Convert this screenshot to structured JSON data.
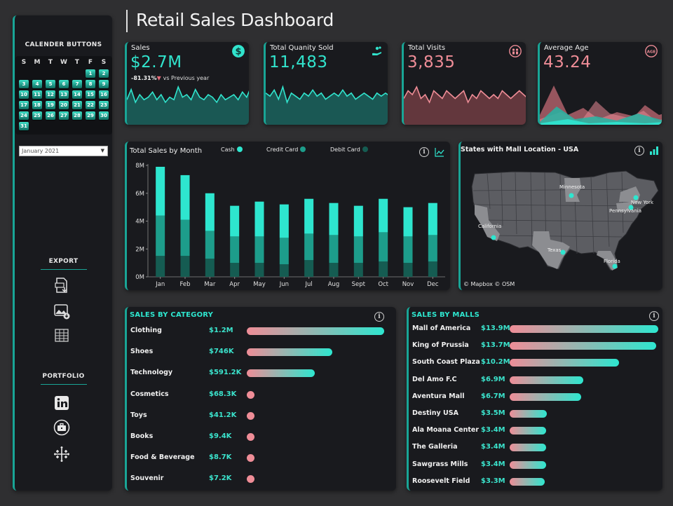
{
  "header": {
    "title": "Retail Sales Dashboard"
  },
  "sidebar": {
    "calendar_title": "CALENDER BUTTONS",
    "weekday_headers": [
      "S",
      "M",
      "T",
      "W",
      "T",
      "F",
      "S"
    ],
    "days": [
      "1",
      "2",
      "3",
      "4",
      "5",
      "6",
      "7",
      "8",
      "9",
      "10",
      "11",
      "12",
      "13",
      "14",
      "15",
      "16",
      "17",
      "18",
      "19",
      "20",
      "21",
      "22",
      "23",
      "24",
      "25",
      "26",
      "27",
      "28",
      "29",
      "30",
      "31"
    ],
    "month_select": "January 2021",
    "export_title": "EXPORT",
    "portfolio_title": "PORTFOLIO",
    "icons": [
      "pdf-export-icon",
      "image-export-icon",
      "table-export-icon",
      "linkedin-icon",
      "briefcase-icon",
      "tableau-icon"
    ]
  },
  "kpis": [
    {
      "label": "Sales",
      "value": "$2.7M",
      "delta": "-81.31%",
      "delta_text": "vs Previous year",
      "icon": "dollar-icon",
      "color": "#31e4cd",
      "fill": "#1b5f5a"
    },
    {
      "label": "Total Quanity Sold",
      "value": "11,483",
      "icon": "hand-coins-icon",
      "color": "#31e4cd",
      "fill": "#1b5f5a"
    },
    {
      "label": "Total Visits",
      "value": "3,835",
      "icon": "people-icon",
      "color": "#ef8d97",
      "fill": "#6b3b40"
    },
    {
      "label": "Average Age",
      "value": "43.24",
      "icon": "age-icon",
      "color": "#ef8d97",
      "fill": "#6b3b40"
    }
  ],
  "chart_data": [
    {
      "type": "bar",
      "stacked": true,
      "title": "Total Sales by Month",
      "categories": [
        "Jan",
        "Feb",
        "Mar",
        "Apr",
        "May",
        "Jun",
        "Jul",
        "Aug",
        "Sept",
        "Oct",
        "Nov",
        "Dec"
      ],
      "series": [
        {
          "name": "Debit Card",
          "color": "#155c52",
          "values": [
            1.5,
            1.5,
            1.3,
            1.0,
            1.0,
            0.9,
            1.2,
            1.0,
            1.0,
            1.1,
            1.0,
            1.1
          ]
        },
        {
          "name": "Credit Card",
          "color": "#1d9d8b",
          "values": [
            2.9,
            2.6,
            2.0,
            1.9,
            1.9,
            1.9,
            1.9,
            2.0,
            1.9,
            2.1,
            1.9,
            1.9
          ]
        },
        {
          "name": "Cash",
          "color": "#2ee6cf",
          "values": [
            3.5,
            3.2,
            2.7,
            2.2,
            2.5,
            2.4,
            2.5,
            2.3,
            2.2,
            2.4,
            2.1,
            2.3
          ]
        }
      ],
      "yticks": [
        "0M",
        "2M",
        "4M",
        "6M",
        "8M"
      ],
      "ylim": [
        0,
        8
      ],
      "legend": "top",
      "grid": false
    }
  ],
  "map": {
    "title": "States with Mall Location - USA",
    "labels": [
      "Minnesota",
      "New York",
      "Pennsylvania",
      "California",
      "Texas",
      "Florida"
    ],
    "attribution": "© Mapbox  © OSM"
  },
  "categories": {
    "title": "SALES BY CATEGORY",
    "rows": [
      {
        "label": "Clothing",
        "value": "$1.2M",
        "amount": 1200
      },
      {
        "label": "Shoes",
        "value": "$746K",
        "amount": 746
      },
      {
        "label": "Technology",
        "value": "$591.2K",
        "amount": 591.2
      },
      {
        "label": "Cosmetics",
        "value": "$68.3K",
        "amount": 68.3
      },
      {
        "label": "Toys",
        "value": "$41.2K",
        "amount": 41.2
      },
      {
        "label": "Books",
        "value": "$9.4K",
        "amount": 9.4
      },
      {
        "label": "Food & Beverage",
        "value": "$8.7K",
        "amount": 8.7
      },
      {
        "label": "Souvenir",
        "value": "$7.2K",
        "amount": 7.2
      }
    ]
  },
  "malls": {
    "title": "SALES BY MALLS",
    "rows": [
      {
        "label": "Mall of America",
        "value": "$13.9M",
        "amount": 13.9
      },
      {
        "label": "King of Prussia",
        "value": "$13.7M",
        "amount": 13.7
      },
      {
        "label": "South Coast Plaza",
        "value": "$10.2M",
        "amount": 10.2
      },
      {
        "label": "Del Amo F.C",
        "value": "$6.9M",
        "amount": 6.9
      },
      {
        "label": "Aventura Mall",
        "value": "$6.7M",
        "amount": 6.7
      },
      {
        "label": "Destiny USA",
        "value": "$3.5M",
        "amount": 3.5
      },
      {
        "label": "Ala Moana Center",
        "value": "$3.4M",
        "amount": 3.4
      },
      {
        "label": "The Galleria",
        "value": "$3.4M",
        "amount": 3.4
      },
      {
        "label": "Sawgrass Mills",
        "value": "$3.4M",
        "amount": 3.4
      },
      {
        "label": "Roosevelt Field",
        "value": "$3.3M",
        "amount": 3.3
      }
    ]
  },
  "colors": {
    "accent": "#2ee6cf",
    "pink": "#ef8d97",
    "panel": "#191a1e"
  }
}
